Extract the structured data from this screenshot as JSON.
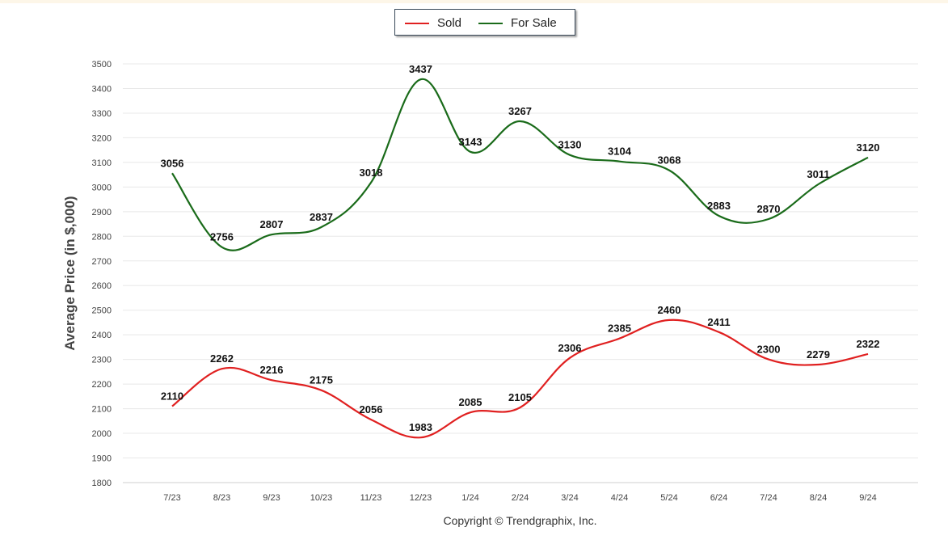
{
  "chart_data": {
    "type": "line",
    "title": "",
    "xlabel": "",
    "ylabel": "Average Price (in $,000)",
    "ylim": [
      1800,
      3500
    ],
    "yticks": [
      1800,
      1900,
      2000,
      2100,
      2200,
      2300,
      2400,
      2500,
      2600,
      2700,
      2800,
      2900,
      3000,
      3100,
      3200,
      3300,
      3400,
      3500
    ],
    "categories": [
      "7/23",
      "8/23",
      "9/23",
      "10/23",
      "11/23",
      "12/23",
      "1/24",
      "2/24",
      "3/24",
      "4/24",
      "5/24",
      "6/24",
      "7/24",
      "8/24",
      "9/24"
    ],
    "grid": true,
    "legend_position": "top-center",
    "series": [
      {
        "name": "Sold",
        "color": "#e02020",
        "values": [
          2110,
          2262,
          2216,
          2175,
          2056,
          1983,
          2085,
          2105,
          2306,
          2385,
          2460,
          2411,
          2300,
          2279,
          2322
        ]
      },
      {
        "name": "For Sale",
        "color": "#1a6b1a",
        "values": [
          3056,
          2756,
          2807,
          2837,
          3018,
          3437,
          3143,
          3267,
          3130,
          3104,
          3068,
          2883,
          2870,
          3011,
          3120
        ]
      }
    ]
  },
  "footer": {
    "copyright": "Copyright © Trendgraphix, Inc."
  }
}
